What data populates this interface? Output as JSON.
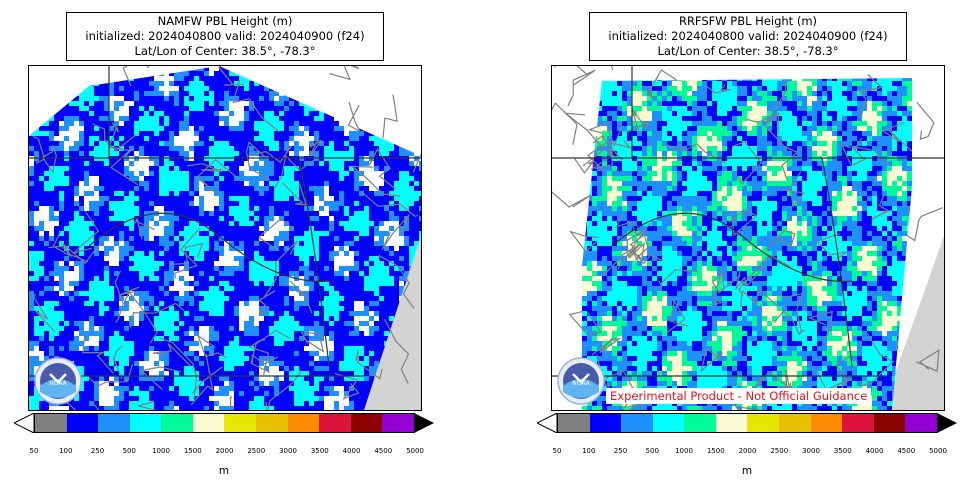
{
  "panels": [
    {
      "title_line1": "NAMFW PBL Height (m)",
      "title_line2": "initialized: 2024040800 valid: 2024040900 (f24)",
      "title_line3": "Lat/Lon of Center: 38.5°, -78.3°",
      "logo_text": "NOAA",
      "disclaimer": ""
    },
    {
      "title_line1": "RRFSFW PBL Height (m)",
      "title_line2": "initialized: 2024040800 valid: 2024040900 (f24)",
      "title_line3": "Lat/Lon of Center: 38.5°, -78.3°",
      "logo_text": "NOAA",
      "disclaimer": "Experimental Product - Not Official Guidance"
    }
  ],
  "colorbar": {
    "colors": [
      "#808080",
      "#0000ff",
      "#1e90ff",
      "#00ffff",
      "#00fa9a",
      "#fafad2",
      "#e6e600",
      "#e6c200",
      "#ff8c00",
      "#dc143c",
      "#8b0000",
      "#9400d3"
    ],
    "under_color": "#ffffff",
    "over_color": "#000000",
    "tick_labels": [
      "50",
      "100",
      "250",
      "500",
      "1000",
      "1500",
      "2000",
      "2500",
      "3000",
      "3500",
      "4000",
      "4500",
      "5000"
    ],
    "unit": "m"
  },
  "map_colors": {
    "ocean": "#d3d3d3",
    "county_lines": "#808080",
    "state_lines": "#333333"
  }
}
